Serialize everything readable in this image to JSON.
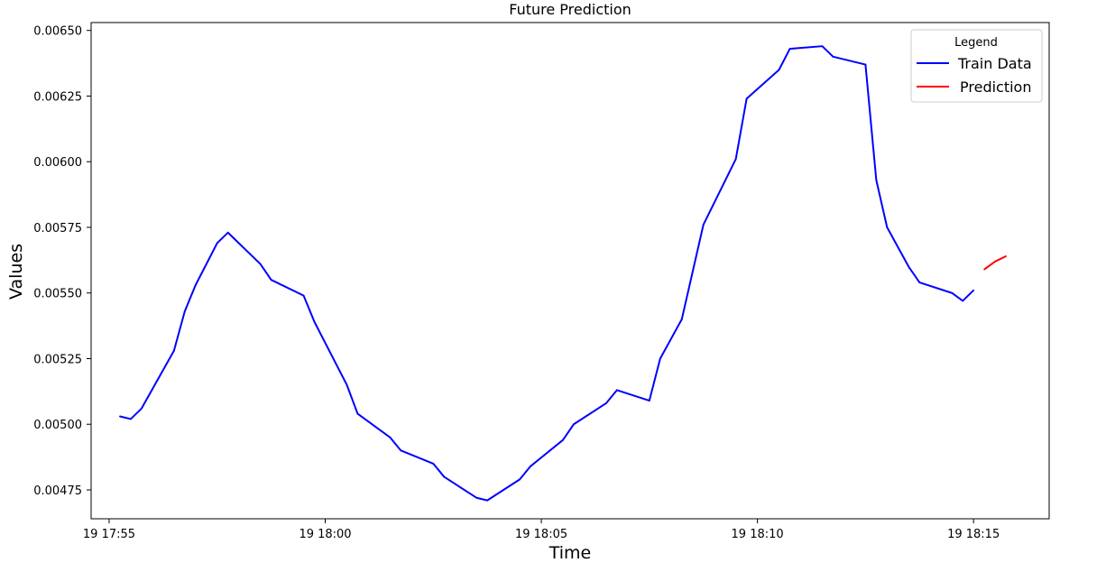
{
  "chart_data": {
    "type": "line",
    "title": "Future Prediction",
    "xlabel": "Time",
    "ylabel": "Values",
    "x_tick_labels": [
      "19 17:55",
      "19 18:00",
      "19 18:05",
      "19 18:10",
      "19 18:15"
    ],
    "y_tick_labels": [
      "0.00475",
      "0.00500",
      "0.00525",
      "0.00550",
      "0.00575",
      "0.00600",
      "0.00625",
      "0.00650"
    ],
    "x_ticks": [
      "17:55:00",
      "18:00:00",
      "18:05:00",
      "18:10:00",
      "18:15:00"
    ],
    "y_ticks": [
      0.00475,
      0.005,
      0.00525,
      0.0055,
      0.00575,
      0.006,
      0.00625,
      0.0065
    ],
    "xlim": [
      "17:54:35",
      "18:16:45"
    ],
    "ylim": [
      0.00464,
      0.00653
    ],
    "grid": false,
    "legend": {
      "title": "Legend",
      "placement": "top-right"
    },
    "series": [
      {
        "name": "Train Data",
        "color": "#0000ff",
        "x": [
          "17:55:15",
          "17:55:30",
          "17:55:45",
          "17:56:30",
          "17:56:45",
          "17:57:00",
          "17:57:30",
          "17:57:45",
          "17:58:30",
          "17:58:45",
          "17:59:30",
          "17:59:45",
          "18:00:30",
          "18:00:45",
          "18:01:30",
          "18:01:45",
          "18:02:30",
          "18:02:45",
          "18:03:30",
          "18:03:45",
          "18:04:30",
          "18:04:45",
          "18:05:30",
          "18:05:45",
          "18:06:30",
          "18:06:45",
          "18:07:30",
          "18:07:45",
          "18:08:15",
          "18:08:45",
          "18:09:30",
          "18:09:45",
          "18:10:30",
          "18:10:45",
          "18:11:30",
          "18:11:45",
          "18:12:30",
          "18:12:45",
          "18:13:00",
          "18:13:30",
          "18:13:45",
          "18:14:30",
          "18:14:45",
          "18:15:00"
        ],
        "y": [
          0.00503,
          0.00502,
          0.00506,
          0.00528,
          0.00543,
          0.00553,
          0.00569,
          0.00573,
          0.00561,
          0.00555,
          0.00549,
          0.00539,
          0.00515,
          0.00504,
          0.00495,
          0.0049,
          0.00485,
          0.0048,
          0.00472,
          0.00471,
          0.00479,
          0.00484,
          0.00494,
          0.005,
          0.00508,
          0.00513,
          0.00509,
          0.00525,
          0.0054,
          0.00576,
          0.00601,
          0.00624,
          0.00635,
          0.00643,
          0.00644,
          0.0064,
          0.00637,
          0.00593,
          0.00575,
          0.0056,
          0.00554,
          0.0055,
          0.00547,
          0.00551
        ]
      },
      {
        "name": "Prediction",
        "color": "#ff0000",
        "x": [
          "18:15:15",
          "18:15:30",
          "18:15:45"
        ],
        "y": [
          0.00559,
          0.00562,
          0.00564
        ]
      }
    ]
  }
}
